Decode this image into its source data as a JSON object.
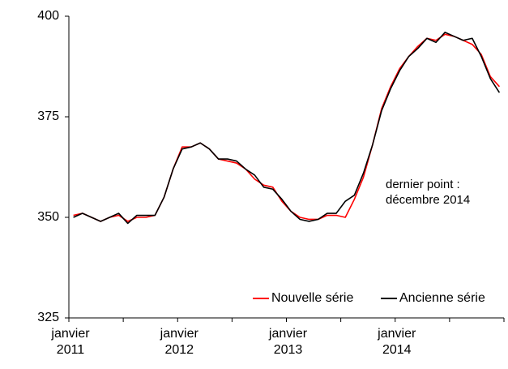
{
  "chart_data": {
    "type": "line",
    "categories": [
      "janvier 2011",
      null,
      null,
      null,
      null,
      null,
      null,
      null,
      null,
      null,
      null,
      null,
      "janvier 2012",
      null,
      null,
      null,
      null,
      null,
      null,
      null,
      null,
      null,
      null,
      null,
      "janvier 2013",
      null,
      null,
      null,
      null,
      null,
      null,
      null,
      null,
      null,
      null,
      null,
      "janvier 2014",
      null,
      null,
      null,
      null,
      null,
      null,
      null,
      null,
      null,
      null,
      null
    ],
    "series": [
      {
        "name": "Nouvelle série",
        "color": "#ff0000",
        "values": [
          350.5,
          351,
          350,
          349,
          350,
          350.5,
          349,
          350,
          350,
          350.5,
          355,
          362,
          367.5,
          367.5,
          368.5,
          367,
          364.5,
          364,
          363.5,
          362,
          359.5,
          358,
          357.5,
          354,
          351.5,
          350,
          349.5,
          349.5,
          350.5,
          350.5,
          350,
          354.5,
          360,
          368,
          377,
          382.5,
          387,
          390,
          392.5,
          394.5,
          394,
          395.5,
          395,
          394,
          393,
          390.5,
          385,
          382.5
        ]
      },
      {
        "name": "Ancienne série",
        "color": "#000000",
        "values": [
          350,
          351,
          350,
          349,
          350,
          351,
          348.5,
          350.5,
          350.5,
          350.5,
          355,
          362,
          367,
          367.5,
          368.5,
          367,
          364.5,
          364.5,
          364,
          362,
          360.5,
          357.5,
          357,
          354.5,
          351.5,
          349.5,
          349,
          349.5,
          351,
          351,
          354,
          355.5,
          361,
          368,
          376.5,
          382,
          386.5,
          390,
          392,
          394.5,
          393.5,
          396,
          395,
          394,
          394.5,
          390,
          384.5,
          381
        ]
      }
    ],
    "ylim": [
      325,
      400
    ],
    "yticks": [
      325,
      350,
      375,
      400
    ],
    "annotation": "dernier point : décembre 2014",
    "legend": "bottom-right",
    "grid": false
  }
}
